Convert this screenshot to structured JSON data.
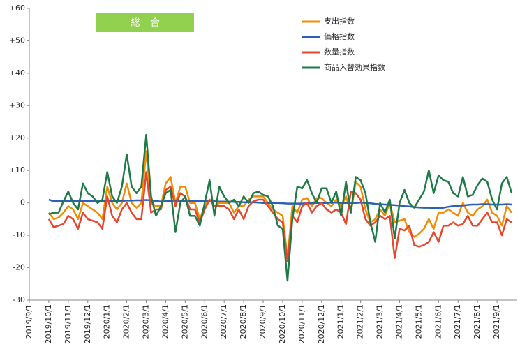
{
  "chart_data": {
    "type": "line",
    "title": "総　合",
    "categories": [
      "2019/9/1",
      null,
      null,
      null,
      "2019/10/1",
      null,
      null,
      null,
      "2019/11/1",
      null,
      null,
      null,
      "2019/12/1",
      null,
      null,
      null,
      "2020/1/1",
      null,
      null,
      null,
      "2020/2/1",
      null,
      null,
      null,
      "2020/3/1",
      null,
      null,
      null,
      "2020/4/1",
      null,
      null,
      null,
      "2020/5/1",
      null,
      null,
      null,
      "2020/6/1",
      null,
      null,
      null,
      "2020/7/1",
      null,
      null,
      null,
      "2020/8/1",
      null,
      null,
      null,
      "2020/9/1",
      null,
      null,
      null,
      "2020/10/1",
      null,
      null,
      null,
      "2020/11/1",
      null,
      null,
      null,
      "2020/12/1",
      null,
      null,
      null,
      "2021/1/1",
      null,
      null,
      null,
      "2021/2/1",
      null,
      null,
      null,
      "2021/3/1",
      null,
      null,
      null,
      "2021/4/1",
      null,
      null,
      null,
      "2021/5/1",
      null,
      null,
      null,
      "2021/6/1",
      null,
      null,
      null,
      "2021/7/1",
      null,
      null,
      null,
      "2021/8/1",
      null,
      null,
      null,
      "2021/9/1",
      null,
      null,
      null
    ],
    "series": [
      {
        "name": "支出指数",
        "color": "#f28c00",
        "values": [
          null,
          null,
          null,
          null,
          -3,
          -5,
          -4.5,
          -3,
          -1,
          -2,
          -5,
          0,
          -1,
          -2,
          -3,
          -5,
          5,
          0,
          -2,
          0,
          6,
          0,
          -1.5,
          0,
          16,
          0,
          -1,
          -1,
          6,
          8,
          0,
          5,
          5,
          0,
          0,
          -5,
          -1,
          1,
          -1,
          0,
          0,
          0,
          -3,
          -1,
          -1,
          1,
          2,
          2,
          2,
          0,
          -2,
          -3,
          -4,
          -17,
          -1,
          -3,
          1,
          1.5,
          -1,
          1.5,
          1.5,
          0,
          -1,
          1,
          -1,
          2,
          -3,
          6.5,
          5,
          -2,
          -6,
          -5,
          -2,
          -4,
          0,
          -6,
          -5.5,
          -5,
          -9,
          -10.5,
          -9.5,
          -8,
          -5,
          -8,
          -3,
          -3,
          -2,
          -3,
          -4,
          0,
          -3,
          -4,
          -2,
          -1,
          1,
          -3,
          -4,
          -7,
          -1,
          -3
        ]
      },
      {
        "name": "価格指数",
        "color": "#2e5fb8",
        "values": [
          null,
          null,
          null,
          null,
          1,
          0.5,
          0.5,
          0.5,
          0.6,
          0.6,
          0.5,
          0.5,
          0.5,
          0.5,
          0.5,
          0.5,
          0.6,
          0.6,
          0.6,
          0.6,
          0.7,
          0.7,
          0.8,
          0.8,
          0.9,
          0.8,
          0.6,
          0.4,
          0.5,
          0.6,
          0.6,
          0.6,
          0.6,
          0.6,
          0.5,
          0.5,
          0.5,
          0.5,
          0.5,
          0.4,
          0.4,
          0.4,
          0.3,
          0.3,
          0.2,
          0.2,
          0.2,
          0.1,
          0,
          0,
          0,
          0,
          -0.1,
          -0.2,
          -0.2,
          -0.2,
          -0.2,
          -0.1,
          -0.1,
          0,
          0,
          0,
          0.1,
          0.1,
          0,
          0,
          0,
          0,
          0.1,
          0,
          -0.1,
          -0.3,
          -0.4,
          -0.5,
          -0.6,
          -0.7,
          -0.8,
          -1,
          -1.1,
          -1.3,
          -1.4,
          -1.5,
          -1.5,
          -1.6,
          -1.6,
          -1.5,
          -1.2,
          -1,
          -0.9,
          -0.8,
          -0.6,
          -0.5,
          -0.5,
          -0.4,
          -0.4,
          -0.5,
          -0.5,
          -0.5,
          -0.4,
          -0.5
        ]
      },
      {
        "name": "数量指数",
        "color": "#e8452c",
        "values": [
          null,
          null,
          null,
          null,
          -5,
          -7.5,
          -7,
          -6.5,
          -4,
          -5,
          -8,
          -3,
          -5,
          -5.5,
          -6,
          -8,
          2,
          -4,
          -6,
          -2,
          0,
          -3,
          -5,
          -5,
          9.5,
          -3,
          -2,
          -2,
          4,
          5,
          -1,
          3,
          2,
          -2,
          -2,
          -6,
          -2,
          1,
          -1,
          -1,
          -1,
          -2,
          -5,
          -2,
          -5,
          -1,
          0.5,
          1,
          1,
          -1,
          -3,
          -5,
          -6,
          -18,
          -4,
          -6,
          -1,
          0,
          -3,
          -1,
          0,
          -2,
          -3,
          -2,
          -3,
          -6.5,
          3.5,
          3,
          1,
          -5,
          -7,
          -6,
          -4,
          -5,
          -4,
          -17,
          -8,
          -8.5,
          -7,
          -13,
          -13.5,
          -13,
          -12,
          -9,
          -12,
          -7,
          -7,
          -6,
          -7,
          -6.5,
          -4,
          -7,
          -7,
          -5,
          -3,
          -6,
          -6,
          -10,
          -5,
          -6
        ]
      },
      {
        "name": "商品入替効果指数",
        "color": "#1e7a46",
        "values": [
          null,
          null,
          null,
          null,
          -3.5,
          -3,
          -3,
          0.5,
          3.5,
          0,
          -2,
          6,
          3,
          2,
          0,
          1,
          9.5,
          2,
          0,
          5,
          15,
          5,
          3,
          5,
          21,
          2,
          -4,
          -1,
          3,
          4,
          -9,
          0,
          2,
          -4,
          -4,
          -7,
          0,
          7,
          -4,
          5,
          2,
          0,
          1,
          -1,
          2,
          0,
          3,
          3.5,
          2.5,
          2,
          -1,
          -7,
          -8,
          -24,
          -5,
          5,
          4.5,
          7,
          3,
          0,
          4.5,
          4.5,
          0,
          3.5,
          -4,
          6.5,
          -3,
          8,
          7,
          3,
          -6,
          -12,
          0,
          -3,
          1,
          -11,
          0,
          4,
          0,
          -1.5,
          1,
          3.5,
          10,
          3,
          8.5,
          7,
          6.5,
          3,
          2,
          8,
          2,
          2.5,
          5.5,
          7.5,
          6.5,
          1,
          -2,
          6,
          8,
          3
        ]
      }
    ],
    "ylim": [
      -30,
      60
    ],
    "yticks": [
      {
        "value": 60,
        "label": "+60"
      },
      {
        "value": 50,
        "label": "+50"
      },
      {
        "value": 40,
        "label": "+40"
      },
      {
        "value": 30,
        "label": "+30"
      },
      {
        "value": 20,
        "label": "+20"
      },
      {
        "value": 10,
        "label": "+10"
      },
      0,
      -10,
      -20,
      -30
    ]
  }
}
